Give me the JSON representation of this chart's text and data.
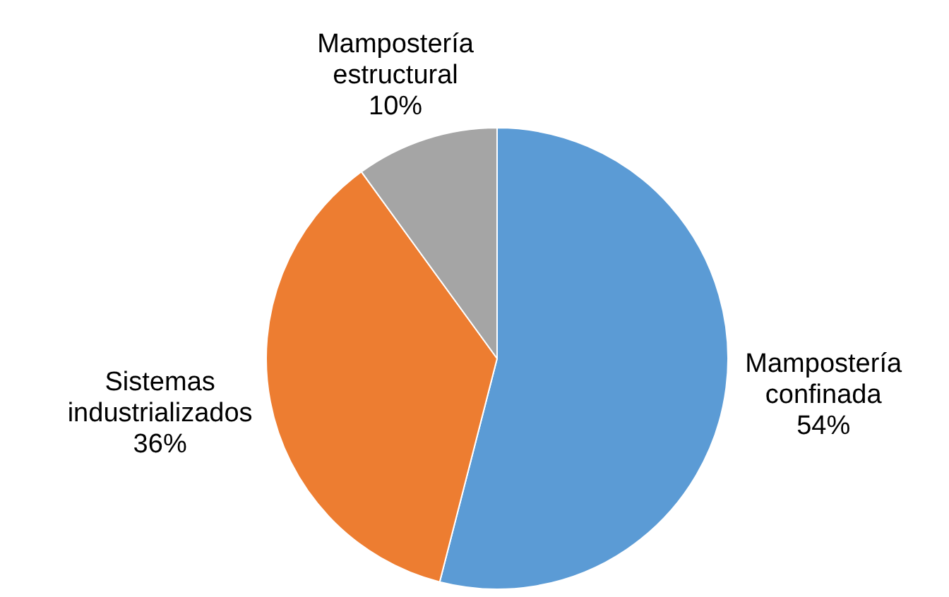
{
  "chart_data": {
    "type": "pie",
    "categories": [
      "Mampostería confinada",
      "Sistemas industrializados",
      "Mampostería estructural"
    ],
    "values": [
      54,
      36,
      10
    ],
    "colors": [
      "#5b9bd5",
      "#ed7d31",
      "#a5a5a5"
    ],
    "value_labels": [
      "54%",
      "36%",
      "10%"
    ],
    "legend": false
  }
}
